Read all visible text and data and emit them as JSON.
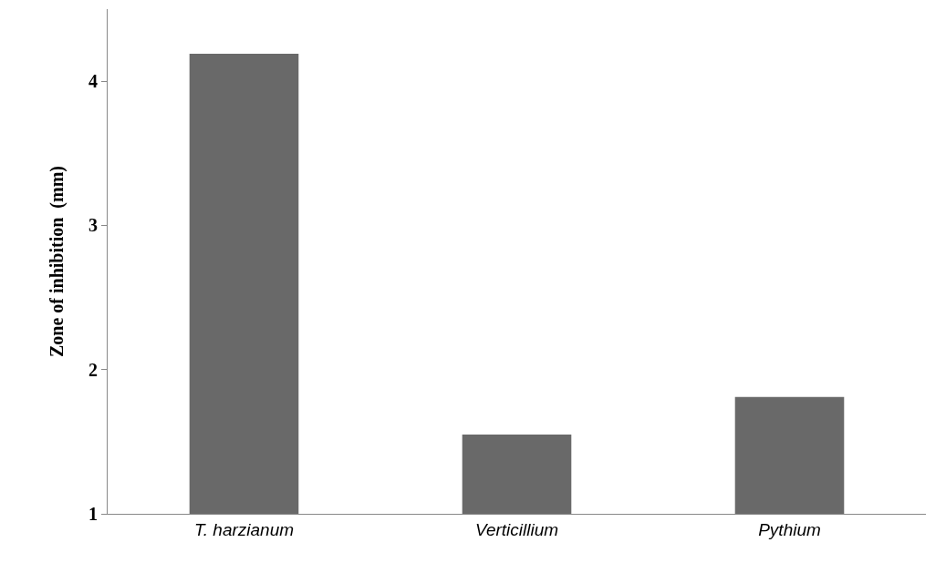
{
  "chart_data": {
    "type": "bar",
    "ylabel": "Zone of inhibition  (mm)",
    "categories": [
      "T. harzianum",
      "Verticillium",
      "Pythium"
    ],
    "values": [
      4.19,
      1.55,
      1.81
    ],
    "color": "#696969",
    "ylim": [
      1,
      4.5
    ],
    "yticks": [
      1,
      2,
      3,
      4
    ]
  }
}
